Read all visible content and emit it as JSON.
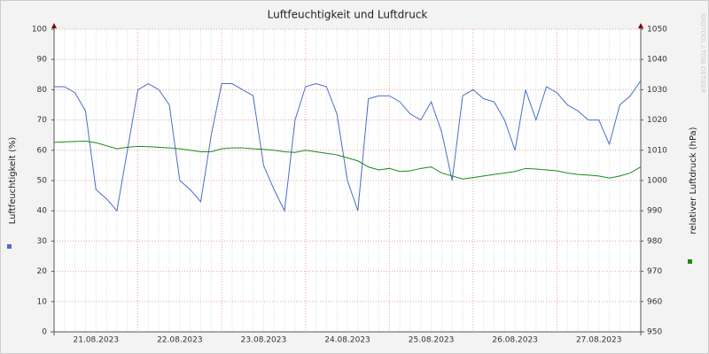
{
  "chart_data": {
    "type": "line",
    "title": "Luftfeuchtigkeit und Luftdruck",
    "y_label": "Luftfeuchtigkeit (%)",
    "y2_label": "relativer Luftdruck (hPa)",
    "side_text": "RRDTOOL / TOBI OETIKER",
    "categories": [
      null,
      null,
      null,
      null,
      "21.08.2023",
      null,
      null,
      null,
      null,
      null,
      null,
      null,
      "22.08.2023",
      null,
      null,
      null,
      null,
      null,
      null,
      null,
      "23.08.2023",
      null,
      null,
      null,
      null,
      null,
      null,
      null,
      "24.08.2023",
      null,
      null,
      null,
      null,
      null,
      null,
      null,
      "25.08.2023",
      null,
      null,
      null,
      null,
      null,
      null,
      null,
      "26.08.2023",
      null,
      null,
      null,
      null,
      null,
      null,
      null,
      "27.08.2023",
      null,
      null,
      null,
      null
    ],
    "ylim": [
      0,
      100
    ],
    "yticks": [
      0,
      10,
      20,
      30,
      40,
      50,
      60,
      70,
      80,
      90,
      100
    ],
    "y2lim": [
      950,
      1050
    ],
    "y2ticks": [
      950,
      960,
      970,
      980,
      990,
      1000,
      1010,
      1020,
      1030,
      1040,
      1050
    ],
    "grid": true,
    "series": [
      {
        "color": "#4a6fc8",
        "values": [
          81,
          81,
          79,
          73,
          47,
          44,
          40,
          60,
          80,
          82,
          80,
          75,
          50,
          47,
          43,
          65,
          82,
          82,
          80,
          78,
          55,
          47,
          40,
          70,
          81,
          82,
          81,
          72,
          50,
          40,
          77,
          78,
          78,
          76,
          72,
          70,
          76,
          66,
          50,
          78,
          80,
          77,
          76,
          70,
          60,
          80,
          70,
          81,
          79,
          75,
          73,
          70,
          70,
          62,
          75,
          78,
          83
        ]
      },
      {
        "color": "#1a8a1a",
        "axis": "y2",
        "values": [
          1012.6,
          1012.8,
          1012.9,
          1013,
          1012.5,
          1011.5,
          1010.5,
          1011,
          1011.3,
          1011.2,
          1011,
          1010.8,
          1010.5,
          1010,
          1009.5,
          1009.5,
          1010.5,
          1010.8,
          1010.8,
          1010.5,
          1010.3,
          1010,
          1009.5,
          1009.3,
          1010,
          1009.5,
          1009,
          1008.5,
          1007.5,
          1006.5,
          1004.5,
          1003.5,
          1004,
          1003,
          1003.2,
          1004,
          1004.5,
          1002.5,
          1001.5,
          1000.5,
          1001,
          1001.5,
          1002,
          1002.5,
          1003,
          1004,
          1003.8,
          1003.5,
          1003.2,
          1002.5,
          1002,
          1001.8,
          1001.5,
          1000.8,
          1001.5,
          1002.5,
          1004.5
        ]
      }
    ]
  }
}
